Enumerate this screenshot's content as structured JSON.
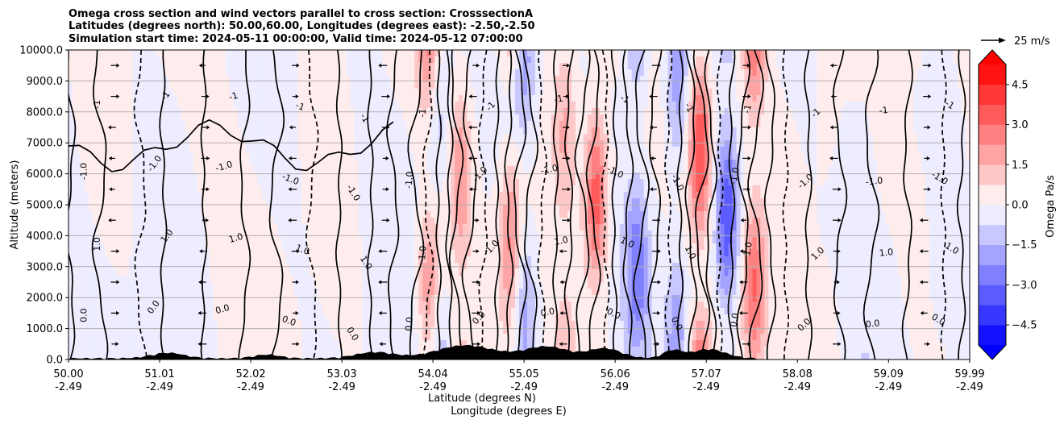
{
  "chart_data": {
    "type": "filled-contour cross section",
    "title_lines": [
      "Omega cross section and wind vectors parallel to cross section: CrosssectionA",
      "Latitudes (degrees north): 50.00,60.00, Longitudes (degrees east): -2.50,-2.50",
      "Simulation start time: 2024-05-11 00:00:00, Valid time: 2024-05-12 07:00:00"
    ],
    "ylabel": "Altitude (meters)",
    "xlabel_lines": [
      "Latitude (degrees N)",
      "Longitude (degrees E)"
    ],
    "ylim": [
      0,
      10000
    ],
    "yticks": [
      0,
      1000,
      2000,
      3000,
      4000,
      5000,
      6000,
      7000,
      8000,
      9000,
      10000
    ],
    "ytick_labels": [
      "0.0",
      "1000.0",
      "2000.0",
      "3000.0",
      "4000.0",
      "5000.0",
      "6000.0",
      "7000.0",
      "8000.0",
      "9000.0",
      "10000.0"
    ],
    "xlim": [
      50.0,
      59.99
    ],
    "xticks": [
      {
        "lat": 50.0,
        "lat_label": "50.00",
        "lon_label": "-2.49"
      },
      {
        "lat": 51.01,
        "lat_label": "51.01",
        "lon_label": "-2.49"
      },
      {
        "lat": 52.02,
        "lat_label": "52.02",
        "lon_label": "-2.49"
      },
      {
        "lat": 53.03,
        "lat_label": "53.03",
        "lon_label": "-2.49"
      },
      {
        "lat": 54.04,
        "lat_label": "54.04",
        "lon_label": "-2.49"
      },
      {
        "lat": 55.05,
        "lat_label": "55.05",
        "lon_label": "-2.49"
      },
      {
        "lat": 56.06,
        "lat_label": "56.06",
        "lon_label": "-2.49"
      },
      {
        "lat": 57.07,
        "lat_label": "57.07",
        "lon_label": "-2.49"
      },
      {
        "lat": 58.08,
        "lat_label": "58.08",
        "lon_label": "-2.49"
      },
      {
        "lat": 59.09,
        "lat_label": "59.09",
        "lon_label": "-2.49"
      },
      {
        "lat": 59.99,
        "lat_label": "59.99",
        "lon_label": "-2.49"
      }
    ],
    "grid_horizontal": true,
    "colorbar": {
      "label": "Omega Pa/s",
      "range": [
        -5.25,
        5.25
      ],
      "extend": "both",
      "ticks": [
        4.5,
        3.0,
        1.5,
        0.0,
        -1.5,
        -3.0,
        -4.5
      ],
      "tick_labels": [
        "4.5",
        "3.0",
        "1.5",
        "0.0",
        "−1.5",
        "−3.0",
        "−4.5"
      ]
    },
    "quiver_key": {
      "label": "25 m/s"
    },
    "contour_levels": [
      -1.0,
      0.0,
      1.0
    ],
    "contour_label_samples": [
      "0.0",
      "1.0",
      "-1.0",
      "-1"
    ],
    "features": [
      {
        "lat": 54.0,
        "omega": 2.5
      },
      {
        "lat": 54.1,
        "omega": -1.5
      },
      {
        "lat": 54.35,
        "omega": 2.0
      },
      {
        "lat": 54.9,
        "omega": 2.5
      },
      {
        "lat": 55.05,
        "omega": -2.0
      },
      {
        "lat": 55.5,
        "omega": 1.5
      },
      {
        "lat": 55.85,
        "omega": 3.5
      },
      {
        "lat": 56.3,
        "omega": -2.5
      },
      {
        "lat": 56.75,
        "omega": -2.0
      },
      {
        "lat": 57.0,
        "omega": 4.0
      },
      {
        "lat": 57.3,
        "omega": -3.5
      },
      {
        "lat": 57.6,
        "omega": 3.0
      },
      {
        "lat": 58.4,
        "omega": 0.6
      },
      {
        "lat": 58.8,
        "omega": -0.5
      },
      {
        "lat": 59.4,
        "omega": 0.4
      }
    ]
  }
}
